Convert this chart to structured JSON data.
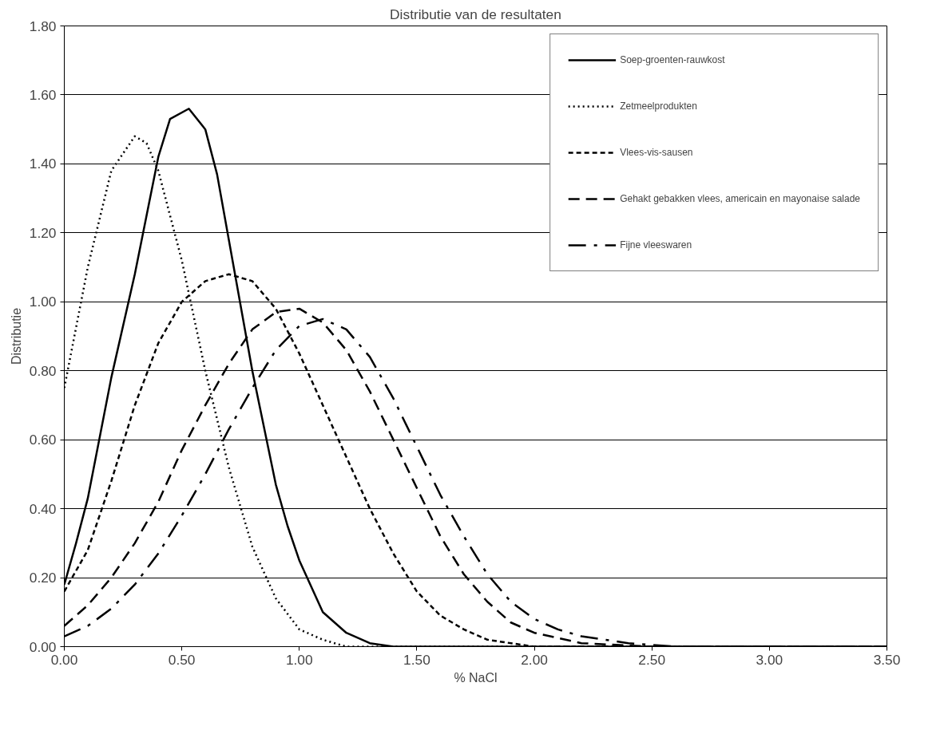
{
  "chart_data": {
    "type": "line",
    "title": "Distributie van de resultaten",
    "xlabel": "% NaCl",
    "ylabel": "Distributie",
    "xlim": [
      0,
      3.5
    ],
    "xticks": [
      {
        "value": 0,
        "label": "0.00"
      },
      {
        "value": 0.5,
        "label": "0.50"
      },
      {
        "value": 1,
        "label": "1.00"
      },
      {
        "value": 1.5,
        "label": "1.50"
      },
      {
        "value": 2,
        "label": "2.00"
      },
      {
        "value": 2.5,
        "label": "2.50"
      },
      {
        "value": 3,
        "label": "3.00"
      },
      {
        "value": 3.5,
        "label": "3.50"
      }
    ],
    "ylim": [
      0,
      1.8
    ],
    "yticks": [
      {
        "value": 0,
        "label": "0.00"
      },
      {
        "value": 0.2,
        "label": "0.20"
      },
      {
        "value": 0.4,
        "label": "0.40"
      },
      {
        "value": 0.6,
        "label": "0.60"
      },
      {
        "value": 0.8,
        "label": "0.80"
      },
      {
        "value": 1.0,
        "label": "1.00"
      },
      {
        "value": 1.2,
        "label": "1.20"
      },
      {
        "value": 1.4,
        "label": "1.40"
      },
      {
        "value": 1.6,
        "label": "1.60"
      },
      {
        "value": 1.8,
        "label": "1.80"
      }
    ],
    "grid": "y",
    "legend": "top right",
    "marker": "none",
    "series": [
      {
        "name": "Soep-groenten-rauwkost",
        "color": "#000000",
        "line_style": "solid",
        "x": [
          0,
          0.05,
          0.1,
          0.2,
          0.3,
          0.35,
          0.4,
          0.45,
          0.53,
          0.6,
          0.65,
          0.7,
          0.8,
          0.9,
          0.95,
          1.0,
          1.1,
          1.2,
          1.3,
          1.4,
          3.5
        ],
        "values": [
          0.18,
          0.3,
          0.43,
          0.78,
          1.08,
          1.25,
          1.42,
          1.53,
          1.56,
          1.5,
          1.37,
          1.18,
          0.8,
          0.47,
          0.35,
          0.25,
          0.1,
          0.04,
          0.01,
          0,
          0
        ]
      },
      {
        "name": "Zetmeelprodukten",
        "color": "#000000",
        "line_style": "dotted",
        "x": [
          0,
          0.1,
          0.2,
          0.3,
          0.35,
          0.4,
          0.5,
          0.6,
          0.7,
          0.8,
          0.9,
          1.0,
          1.1,
          1.2,
          3.5
        ],
        "values": [
          0.75,
          1.1,
          1.38,
          1.48,
          1.46,
          1.38,
          1.12,
          0.8,
          0.52,
          0.29,
          0.14,
          0.05,
          0.02,
          0,
          0
        ]
      },
      {
        "name": "Vlees-vis-sausen",
        "color": "#000000",
        "line_style": "dashed",
        "x": [
          0,
          0.1,
          0.2,
          0.3,
          0.4,
          0.5,
          0.6,
          0.7,
          0.8,
          0.9,
          1.0,
          1.1,
          1.2,
          1.3,
          1.4,
          1.5,
          1.6,
          1.7,
          1.8,
          2.0,
          3.5
        ],
        "values": [
          0.16,
          0.28,
          0.48,
          0.7,
          0.88,
          1.0,
          1.06,
          1.08,
          1.06,
          0.98,
          0.85,
          0.7,
          0.55,
          0.4,
          0.27,
          0.16,
          0.09,
          0.05,
          0.02,
          0,
          0
        ]
      },
      {
        "name": "Gehakt gebakken vlees, americain en mayonaise salade",
        "color": "#000000",
        "line_style": "dashed",
        "x": [
          0,
          0.1,
          0.2,
          0.3,
          0.4,
          0.5,
          0.6,
          0.7,
          0.8,
          0.9,
          1.0,
          1.1,
          1.2,
          1.3,
          1.4,
          1.5,
          1.6,
          1.7,
          1.8,
          1.9,
          2.0,
          2.2,
          2.5,
          3.5
        ],
        "values": [
          0.06,
          0.12,
          0.2,
          0.3,
          0.42,
          0.57,
          0.7,
          0.82,
          0.92,
          0.97,
          0.98,
          0.94,
          0.86,
          0.74,
          0.6,
          0.46,
          0.32,
          0.21,
          0.13,
          0.07,
          0.04,
          0.01,
          0,
          0
        ]
      },
      {
        "name": "Fijne vleeswaren",
        "color": "#000000",
        "line_style": "dashed",
        "x": [
          0,
          0.1,
          0.2,
          0.3,
          0.4,
          0.5,
          0.6,
          0.7,
          0.8,
          0.9,
          1.0,
          1.1,
          1.2,
          1.3,
          1.4,
          1.5,
          1.6,
          1.7,
          1.8,
          1.9,
          2.0,
          2.1,
          2.2,
          2.4,
          2.6,
          3.5
        ],
        "values": [
          0.03,
          0.06,
          0.11,
          0.18,
          0.27,
          0.38,
          0.5,
          0.63,
          0.75,
          0.86,
          0.93,
          0.95,
          0.92,
          0.84,
          0.72,
          0.58,
          0.44,
          0.32,
          0.21,
          0.13,
          0.08,
          0.05,
          0.03,
          0.01,
          0,
          0
        ]
      }
    ]
  }
}
